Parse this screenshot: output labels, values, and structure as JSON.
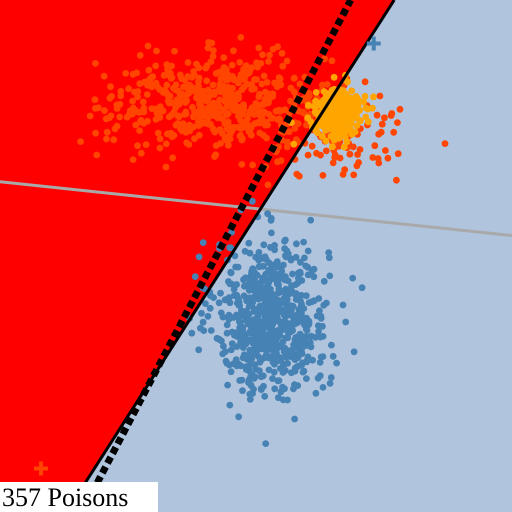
{
  "caption": {
    "text": "357 Poisons"
  },
  "colors": {
    "region_positive": "#ff0000",
    "region_negative": "#b0c4de",
    "orange_points": "#ff4500",
    "poison_points": "#ffa500",
    "blue_points": "#4682b4",
    "true_boundary": "#000000",
    "poisoned_boundary": "#000000",
    "reference_line": "#a9a9a9",
    "orange_marker": "#ff4500",
    "blue_marker": "#4682b4",
    "caption_bg": "#ffffff"
  },
  "chart_data": {
    "type": "scatter",
    "xlim": [
      0,
      1
    ],
    "ylim": [
      0,
      1
    ],
    "grid": false,
    "clusters": [
      {
        "class": "orange",
        "n": 520,
        "center": [
          0.43,
          0.8
        ],
        "spread": [
          0.11,
          0.045
        ],
        "tail": {
          "n": 80,
          "center": [
            0.66,
            0.72
          ],
          "spread": [
            0.08,
            0.04
          ]
        }
      },
      {
        "class": "poison",
        "n": 357,
        "center": [
          0.66,
          0.78
        ],
        "spread": [
          0.022,
          0.022
        ]
      },
      {
        "class": "blue",
        "n": 700,
        "center": [
          0.53,
          0.38
        ],
        "spread": [
          0.055,
          0.075
        ]
      }
    ],
    "markers": [
      {
        "class": "orange",
        "shape": "plus",
        "x": 0.08,
        "y": 0.085
      },
      {
        "class": "blue",
        "shape": "plus",
        "x": 0.73,
        "y": 0.915
      }
    ],
    "lines": [
      {
        "role": "true_boundary",
        "style": "solid",
        "points": [
          [
            0.13,
            0.0
          ],
          [
            0.77,
            1.0
          ]
        ]
      },
      {
        "role": "poisoned_boundary",
        "style": "dotted",
        "points": [
          [
            0.16,
            0.0
          ],
          [
            0.685,
            1.0
          ]
        ]
      },
      {
        "role": "reference",
        "style": "solid",
        "points": [
          [
            0.0,
            0.645
          ],
          [
            1.0,
            0.54
          ]
        ]
      }
    ],
    "regions": [
      {
        "class": "positive",
        "side": "left_of_true_boundary"
      },
      {
        "class": "negative",
        "side": "right_of_true_boundary"
      }
    ]
  }
}
